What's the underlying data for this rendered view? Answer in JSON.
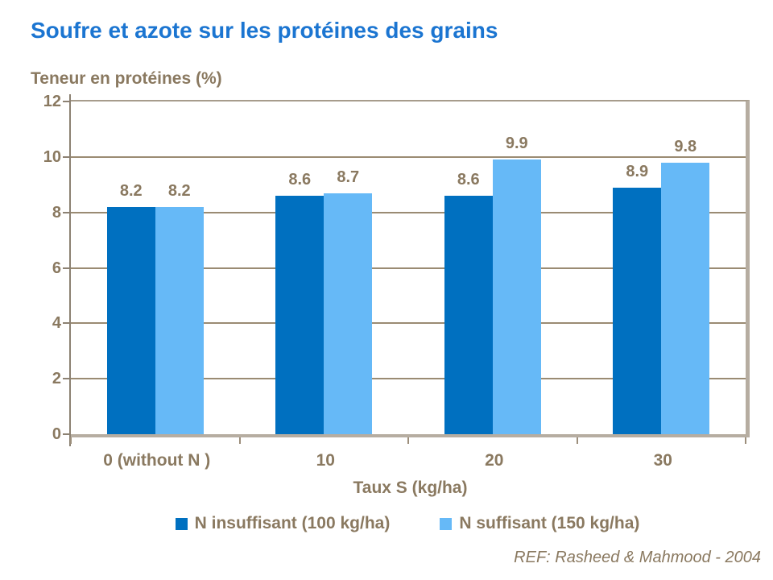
{
  "title": "Soufre et azote sur les protéines des grains",
  "subtitle": "Teneur en protéines (%)",
  "footer": {
    "ref": "REF: Rasheed & Mahmood - 2004"
  },
  "colors": {
    "title": "#1B75D1",
    "text_brown": "#8A7960",
    "series1": "#0070C0",
    "series2": "#66B9F7",
    "gridline": "#9A8B73",
    "axis": "#8C8172",
    "frame": "#B6ADA1"
  },
  "chart_data": {
    "type": "bar",
    "categories": [
      "0 (without N )",
      "10",
      "20",
      "30"
    ],
    "series": [
      {
        "name": "N insuffisant (100 kg/ha)",
        "color": "#0070C0",
        "values": [
          8.2,
          8.6,
          8.6,
          8.9
        ]
      },
      {
        "name": "N suffisant (150 kg/ha)",
        "color": "#66B9F7",
        "values": [
          8.2,
          8.7,
          9.9,
          9.8
        ]
      }
    ],
    "data_labels": [
      [
        "8.2",
        "8.6",
        "8.6",
        "8.9"
      ],
      [
        "8.2",
        "8.7",
        "9.9",
        "9.8"
      ]
    ],
    "title": "Soufre et azote sur les protéines des grains",
    "xlabel": "Taux S (kg/ha)",
    "ylabel": "Teneur en protéines (%)",
    "ylim": [
      0,
      12
    ],
    "yticks": [
      0,
      2,
      4,
      6,
      8,
      10,
      12
    ],
    "grid": true,
    "legend_position": "bottom"
  }
}
